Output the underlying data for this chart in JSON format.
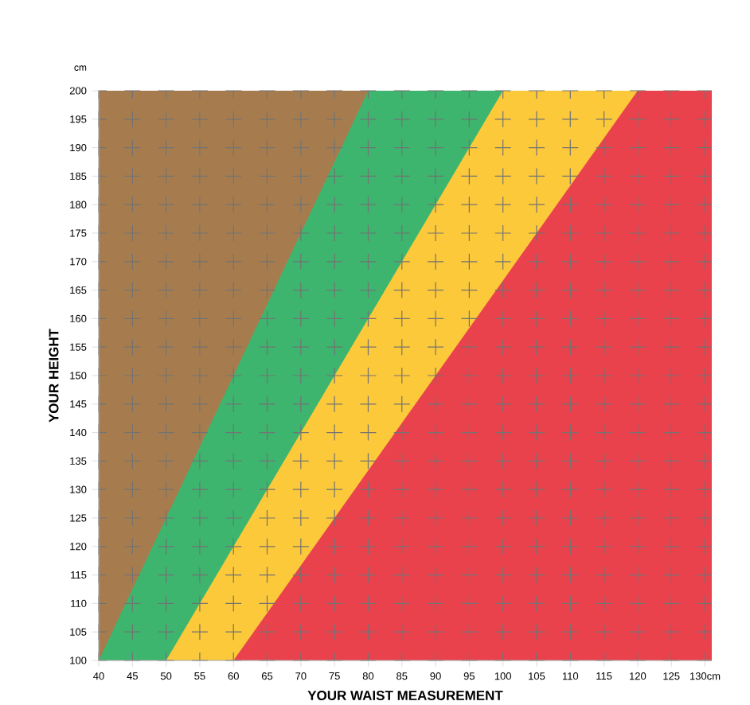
{
  "chart_data": {
    "type": "area",
    "xlabel": "YOUR WAIST MEASUREMENT",
    "ylabel": "YOUR HEIGHT",
    "annotations": [
      "cm"
    ],
    "xlim": [
      40,
      131
    ],
    "ylim": [
      100,
      200
    ],
    "xticks": [
      40,
      45,
      50,
      55,
      60,
      65,
      70,
      75,
      80,
      85,
      90,
      95,
      100,
      105,
      110,
      115,
      120,
      125,
      {
        "value": 130,
        "label": "130cm"
      }
    ],
    "yticks": [
      100,
      105,
      110,
      115,
      120,
      125,
      130,
      135,
      140,
      145,
      150,
      155,
      160,
      165,
      170,
      175,
      180,
      185,
      190,
      195,
      200
    ],
    "grid": true,
    "series": [
      {
        "color": "#a67c4e",
        "x": [
          40,
          80
        ],
        "values": [
          200,
          200
        ]
      },
      {
        "color": "#3db56e",
        "x": [
          40,
          80,
          100
        ],
        "values": [
          100,
          200,
          200
        ]
      },
      {
        "color": "#fcc93a",
        "x": [
          50,
          100,
          120
        ],
        "values": [
          100,
          200,
          200
        ]
      },
      {
        "color": "#e9424d",
        "x": [
          60,
          120,
          131
        ],
        "values": [
          100,
          200,
          200
        ]
      }
    ]
  }
}
